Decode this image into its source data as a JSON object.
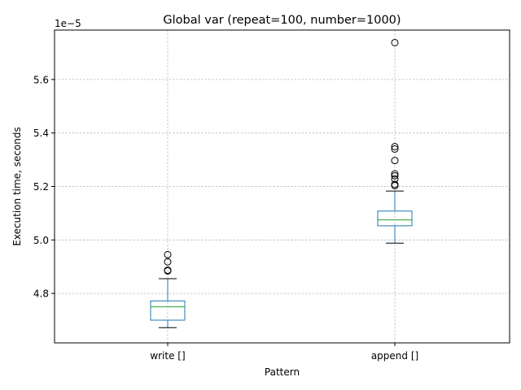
{
  "chart_data": {
    "type": "box",
    "title": "Global var (repeat=100, number=1000)",
    "xlabel": "Pattern",
    "ylabel": "Execution time, seconds",
    "y_offset_label": "1e−5",
    "y_scale": 1e-05,
    "ylim": [
      4.615,
      5.785
    ],
    "yticks": [
      4.8,
      5.0,
      5.2,
      5.4,
      5.6
    ],
    "ytick_labels": [
      "4.8",
      "5.0",
      "5.2",
      "5.4",
      "5.6"
    ],
    "grid": true,
    "categories": [
      "write []",
      "append []"
    ],
    "boxes": [
      {
        "label": "write []",
        "whisker_low": 4.672,
        "q1": 4.7,
        "median": 4.75,
        "q3": 4.772,
        "whisker_high": 4.855,
        "fliers": [
          4.887,
          4.884,
          4.918,
          4.945
        ]
      },
      {
        "label": "append []",
        "whisker_low": 4.988,
        "q1": 5.053,
        "median": 5.075,
        "q3": 5.108,
        "whisker_high": 5.183,
        "fliers": [
          5.203,
          5.208,
          5.228,
          5.24,
          5.247,
          5.297,
          5.34,
          5.349,
          5.738
        ]
      }
    ],
    "colors": {
      "box": "#1f77b4",
      "median": "#2ca02c",
      "whisker": "#1f77b4",
      "cap": "#000000",
      "flier": "#000000",
      "grid": "#b0b0b0"
    }
  }
}
